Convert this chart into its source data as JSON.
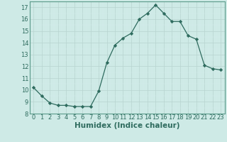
{
  "x": [
    0,
    1,
    2,
    3,
    4,
    5,
    6,
    7,
    8,
    9,
    10,
    11,
    12,
    13,
    14,
    15,
    16,
    17,
    18,
    19,
    20,
    21,
    22,
    23
  ],
  "y": [
    10.2,
    9.5,
    8.9,
    8.7,
    8.7,
    8.6,
    8.6,
    8.6,
    9.9,
    12.3,
    13.8,
    14.4,
    14.8,
    16.0,
    16.5,
    17.2,
    16.5,
    15.8,
    15.8,
    14.6,
    14.3,
    12.1,
    11.8,
    11.7
  ],
  "title": "",
  "xlabel": "Humidex (Indice chaleur)",
  "ylabel": "",
  "xlim": [
    -0.5,
    23.5
  ],
  "ylim": [
    8,
    17.5
  ],
  "yticks": [
    8,
    9,
    10,
    11,
    12,
    13,
    14,
    15,
    16,
    17
  ],
  "xticks": [
    0,
    1,
    2,
    3,
    4,
    5,
    6,
    7,
    8,
    9,
    10,
    11,
    12,
    13,
    14,
    15,
    16,
    17,
    18,
    19,
    20,
    21,
    22,
    23
  ],
  "line_color": "#2e6b5e",
  "marker": "D",
  "marker_size": 2.2,
  "bg_color": "#ceeae6",
  "grid_color_major": "#b8d4d0",
  "grid_color_minor": "#d4ecec",
  "tick_fontsize": 6.0,
  "xlabel_fontsize": 7.5,
  "spine_color": "#5a9a8a"
}
